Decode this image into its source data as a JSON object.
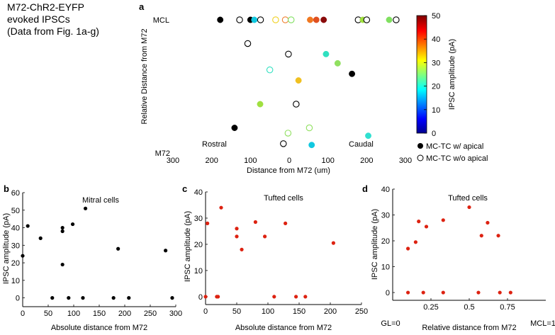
{
  "figure_note": [
    "M72-ChR2-EYFP",
    "evoked IPSCs",
    "(Data from Fig. 1a-g)"
  ],
  "colorbar": {
    "label": "IPSC amplitude (pA)",
    "min": 0,
    "max": 50,
    "ticks": [
      "0",
      "10",
      "20",
      "30",
      "40",
      "50"
    ]
  },
  "legend": {
    "filled_label": "MC-TC w/ apical",
    "open_label": "MC-TC w/o apical"
  },
  "chart_data": [
    {
      "panel": "a",
      "type": "scatter",
      "xlabel": "Distance from M72 (um)",
      "ylabel": "Relative Distance from M72",
      "x_ticks": [
        "300",
        "200",
        "100",
        "0",
        "100",
        "200",
        "300"
      ],
      "y_tick_top": "MCL",
      "y_tick_bottom": "M72",
      "left_annotation": "Rostral",
      "right_annotation": "Caudal",
      "xlim": [
        -300,
        300
      ],
      "ylim": [
        0,
        1
      ],
      "points": [
        {
          "x": -178,
          "y": 1.0,
          "kind": "filled",
          "color": "#000000"
        },
        {
          "x": -128,
          "y": 1.0,
          "kind": "open",
          "color": "#000000"
        },
        {
          "x": -100,
          "y": 1.0,
          "kind": "filled",
          "color": "#000000"
        },
        {
          "x": -90,
          "y": 1.0,
          "kind": "filled",
          "color": "#11c8e0"
        },
        {
          "x": -74,
          "y": 1.0,
          "kind": "open",
          "color": "#000000"
        },
        {
          "x": -35,
          "y": 1.0,
          "kind": "open",
          "color": "#f0d020"
        },
        {
          "x": -10,
          "y": 1.0,
          "kind": "open",
          "color": "#f08030"
        },
        {
          "x": 5,
          "y": 1.0,
          "kind": "open",
          "color": "#80e060"
        },
        {
          "x": 54,
          "y": 1.0,
          "kind": "filled",
          "color": "#f07820"
        },
        {
          "x": 70,
          "y": 1.0,
          "kind": "filled",
          "color": "#e05020"
        },
        {
          "x": 89,
          "y": 1.0,
          "kind": "filled",
          "color": "#8a0a0a"
        },
        {
          "x": 178,
          "y": 1.0,
          "kind": "open",
          "color": "#000000"
        },
        {
          "x": 190,
          "y": 1.0,
          "kind": "filled",
          "color": "#a0e040"
        },
        {
          "x": 200,
          "y": 1.0,
          "kind": "open",
          "color": "#000000"
        },
        {
          "x": 258,
          "y": 1.0,
          "kind": "filled",
          "color": "#80e060"
        },
        {
          "x": 276,
          "y": 1.0,
          "kind": "open",
          "color": "#000000"
        },
        {
          "x": -107,
          "y": 0.82,
          "kind": "open",
          "color": "#000000"
        },
        {
          "x": -2,
          "y": 0.74,
          "kind": "open",
          "color": "#000000"
        },
        {
          "x": 95,
          "y": 0.74,
          "kind": "filled",
          "color": "#30e0c0"
        },
        {
          "x": 125,
          "y": 0.67,
          "kind": "filled",
          "color": "#90e060"
        },
        {
          "x": -50,
          "y": 0.62,
          "kind": "open",
          "color": "#30e0c0"
        },
        {
          "x": 162,
          "y": 0.59,
          "kind": "filled",
          "color": "#000000"
        },
        {
          "x": 24,
          "y": 0.54,
          "kind": "filled",
          "color": "#f0c020"
        },
        {
          "x": -75,
          "y": 0.36,
          "kind": "filled",
          "color": "#a0e040"
        },
        {
          "x": 18,
          "y": 0.36,
          "kind": "open",
          "color": "#000000"
        },
        {
          "x": 52,
          "y": 0.18,
          "kind": "open",
          "color": "#90e060"
        },
        {
          "x": -141,
          "y": 0.18,
          "kind": "filled",
          "color": "#000000"
        },
        {
          "x": -3,
          "y": 0.14,
          "kind": "open",
          "color": "#90e060"
        },
        {
          "x": 204,
          "y": 0.12,
          "kind": "filled",
          "color": "#30e0d0"
        },
        {
          "x": 58,
          "y": 0.05,
          "kind": "filled",
          "color": "#11c8e0"
        },
        {
          "x": -15,
          "y": 0.06,
          "kind": "open",
          "color": "#000000"
        }
      ]
    },
    {
      "panel": "b",
      "type": "scatter",
      "title": "Mitral cells",
      "xlabel": "Absolute distance from M72",
      "ylabel": "IPSC amplitude (pA)",
      "xlim": [
        0,
        300
      ],
      "ylim": [
        -5,
        60
      ],
      "x_ticks": [
        0,
        50,
        100,
        150,
        200,
        250,
        300
      ],
      "y_ticks": [
        0,
        10,
        20,
        30,
        40,
        50,
        60
      ],
      "color": "#000000",
      "points": [
        [
          0,
          24
        ],
        [
          10,
          41
        ],
        [
          35,
          34
        ],
        [
          58,
          0
        ],
        [
          78,
          38
        ],
        [
          78,
          40
        ],
        [
          78,
          19
        ],
        [
          90,
          0
        ],
        [
          98,
          42
        ],
        [
          118,
          0
        ],
        [
          123,
          51
        ],
        [
          178,
          0
        ],
        [
          187,
          28
        ],
        [
          208,
          0
        ],
        [
          280,
          27
        ],
        [
          293,
          0
        ]
      ]
    },
    {
      "panel": "c",
      "type": "scatter",
      "title": "Tufted cells",
      "xlabel": "Absolute distance from M72",
      "ylabel": "IPSC amplitude (pA)",
      "xlim": [
        0,
        250
      ],
      "ylim": [
        -3,
        40
      ],
      "x_ticks": [
        0,
        50,
        100,
        150,
        200,
        250
      ],
      "y_ticks": [
        0,
        10,
        20,
        30,
        40
      ],
      "color": "#dd2211",
      "points": [
        [
          0,
          0
        ],
        [
          3,
          28
        ],
        [
          18,
          0
        ],
        [
          20,
          0
        ],
        [
          25,
          34
        ],
        [
          50,
          26
        ],
        [
          50,
          23
        ],
        [
          58,
          18
        ],
        [
          80,
          28.5
        ],
        [
          95,
          23
        ],
        [
          110,
          0
        ],
        [
          128,
          28
        ],
        [
          145,
          0
        ],
        [
          160,
          0
        ],
        [
          205,
          20.5
        ]
      ]
    },
    {
      "panel": "d",
      "type": "scatter",
      "title": "Tufted cells",
      "xlabel": "Relative distance from M72",
      "ylabel": "IPSC amplitude (pA)",
      "xlim": [
        0,
        1
      ],
      "ylim": [
        -3,
        40
      ],
      "x_ticks": [
        0.25,
        0.5,
        0.75
      ],
      "x_tick_labels": [
        "0.25",
        "0.5",
        "0.75"
      ],
      "x_edge_left": "GL=0",
      "x_edge_right": "MCL=1",
      "y_ticks": [
        0,
        10,
        20,
        30,
        40
      ],
      "color": "#dd2211",
      "points": [
        [
          0.1,
          17
        ],
        [
          0.1,
          0
        ],
        [
          0.15,
          19.5
        ],
        [
          0.17,
          27.5
        ],
        [
          0.2,
          0
        ],
        [
          0.22,
          25.5
        ],
        [
          0.33,
          28
        ],
        [
          0.33,
          0
        ],
        [
          0.5,
          33
        ],
        [
          0.56,
          0
        ],
        [
          0.58,
          22
        ],
        [
          0.62,
          27
        ],
        [
          0.69,
          22
        ],
        [
          0.7,
          0
        ],
        [
          0.77,
          0
        ]
      ]
    }
  ]
}
